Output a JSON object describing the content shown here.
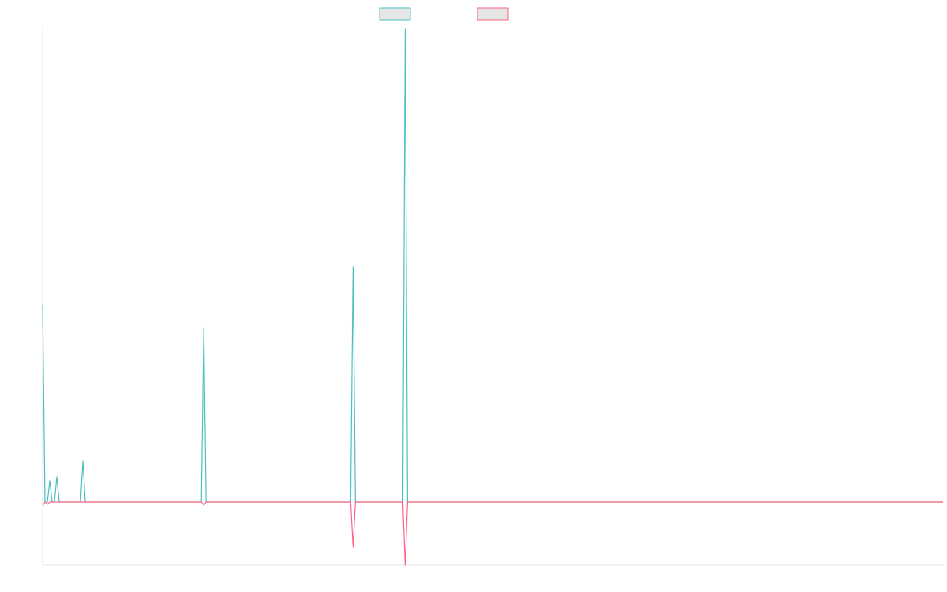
{
  "chart_data": {
    "type": "line",
    "x": [
      0,
      1,
      2,
      3,
      4,
      5,
      6,
      7,
      16,
      17,
      18,
      67,
      68,
      69,
      130,
      131,
      132,
      152,
      153,
      154,
      380
    ],
    "xlim": [
      0,
      380
    ],
    "ylim": [
      -80,
      600
    ],
    "series": [
      {
        "color": "#4bc0c0",
        "values": [
          249,
          0,
          0,
          27,
          0,
          0,
          32,
          0,
          0,
          52,
          0,
          0,
          221,
          0,
          0,
          298,
          0,
          0,
          599,
          0,
          0
        ]
      },
      {
        "color": "#ff6384",
        "values": [
          -5,
          0,
          -3,
          0,
          0,
          0,
          0,
          0,
          0,
          0,
          0,
          0,
          -4,
          0,
          0,
          -57,
          0,
          0,
          -80,
          0,
          0
        ]
      }
    ]
  }
}
